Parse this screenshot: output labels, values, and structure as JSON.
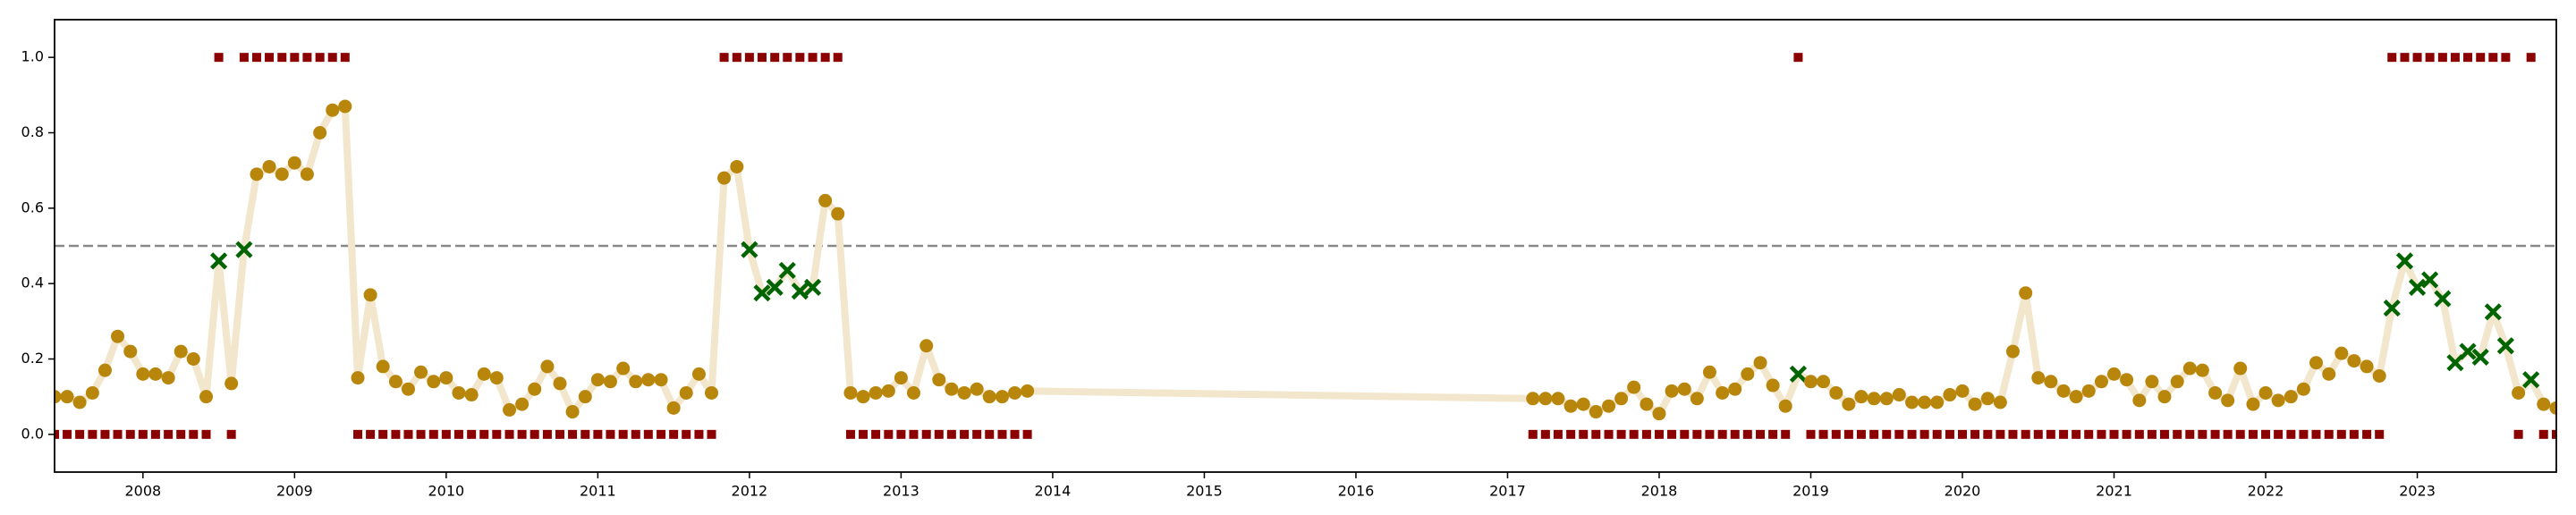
{
  "chart_data": {
    "type": "line",
    "x": [
      2007.417,
      2007.5,
      2007.583,
      2007.667,
      2007.75,
      2007.833,
      2007.917,
      2008,
      2008.083,
      2008.167,
      2008.25,
      2008.333,
      2008.417,
      2008.5,
      2008.583,
      2008.667,
      2008.75,
      2008.833,
      2008.917,
      2009,
      2009.083,
      2009.167,
      2009.25,
      2009.333,
      2009.417,
      2009.5,
      2009.583,
      2009.667,
      2009.75,
      2009.833,
      2009.917,
      2010,
      2010.083,
      2010.167,
      2010.25,
      2010.333,
      2010.417,
      2010.5,
      2010.583,
      2010.667,
      2010.75,
      2010.833,
      2010.917,
      2011,
      2011.083,
      2011.167,
      2011.25,
      2011.333,
      2011.417,
      2011.5,
      2011.583,
      2011.667,
      2011.75,
      2011.833,
      2011.917,
      2012,
      2012.083,
      2012.167,
      2012.25,
      2012.333,
      2012.417,
      2012.5,
      2012.583,
      2012.667,
      2012.75,
      2012.833,
      2012.917,
      2013,
      2013.083,
      2013.167,
      2013.25,
      2013.333,
      2013.417,
      2013.5,
      2013.583,
      2013.667,
      2013.75,
      2013.833,
      2017.167,
      2017.25,
      2017.333,
      2017.417,
      2017.5,
      2017.583,
      2017.667,
      2017.75,
      2017.833,
      2017.917,
      2018,
      2018.083,
      2018.167,
      2018.25,
      2018.333,
      2018.417,
      2018.5,
      2018.583,
      2018.667,
      2018.75,
      2018.833,
      2018.917,
      2019,
      2019.083,
      2019.167,
      2019.25,
      2019.333,
      2019.417,
      2019.5,
      2019.583,
      2019.667,
      2019.75,
      2019.833,
      2019.917,
      2020,
      2020.083,
      2020.167,
      2020.25,
      2020.333,
      2020.417,
      2020.5,
      2020.583,
      2020.667,
      2020.75,
      2020.833,
      2020.917,
      2021,
      2021.083,
      2021.167,
      2021.25,
      2021.333,
      2021.417,
      2021.5,
      2021.583,
      2021.667,
      2021.75,
      2021.833,
      2021.917,
      2022,
      2022.083,
      2022.167,
      2022.25,
      2022.333,
      2022.417,
      2022.5,
      2022.583,
      2022.667,
      2022.75,
      2022.833,
      2022.917,
      2023,
      2023.083,
      2023.167,
      2023.25,
      2023.333,
      2023.417,
      2023.5,
      2023.583,
      2023.667,
      2023.75,
      2023.833,
      2023.917
    ],
    "values": [
      0.1,
      0.1,
      0.085,
      0.11,
      0.17,
      0.26,
      0.22,
      0.16,
      0.16,
      0.15,
      0.22,
      0.2,
      0.1,
      0.46,
      0.135,
      0.49,
      0.69,
      0.71,
      0.69,
      0.72,
      0.69,
      0.8,
      0.86,
      0.87,
      0.15,
      0.37,
      0.18,
      0.14,
      0.12,
      0.165,
      0.14,
      0.15,
      0.11,
      0.105,
      0.16,
      0.15,
      0.065,
      0.08,
      0.12,
      0.18,
      0.135,
      0.06,
      0.1,
      0.145,
      0.14,
      0.175,
      0.14,
      0.145,
      0.145,
      0.07,
      0.11,
      0.16,
      0.11,
      0.68,
      0.71,
      0.49,
      0.375,
      0.39,
      0.435,
      0.38,
      0.39,
      0.62,
      0.585,
      0.11,
      0.1,
      0.11,
      0.115,
      0.15,
      0.11,
      0.235,
      0.145,
      0.12,
      0.11,
      0.12,
      0.1,
      0.1,
      0.11,
      0.115,
      0.095,
      0.095,
      0.095,
      0.075,
      0.08,
      0.06,
      0.075,
      0.095,
      0.125,
      0.08,
      0.055,
      0.115,
      0.12,
      0.095,
      0.165,
      0.11,
      0.12,
      0.16,
      0.19,
      0.13,
      0.075,
      0.16,
      0.14,
      0.14,
      0.11,
      0.08,
      0.1,
      0.095,
      0.095,
      0.105,
      0.085,
      0.085,
      0.085,
      0.105,
      0.115,
      0.08,
      0.095,
      0.085,
      0.22,
      0.375,
      0.15,
      0.14,
      0.115,
      0.1,
      0.115,
      0.14,
      0.16,
      0.145,
      0.09,
      0.14,
      0.1,
      0.14,
      0.175,
      0.17,
      0.11,
      0.09,
      0.175,
      0.08,
      0.11,
      0.09,
      0.1,
      0.12,
      0.19,
      0.16,
      0.215,
      0.195,
      0.18,
      0.155,
      0.335,
      0.46,
      0.39,
      0.41,
      0.36,
      0.19,
      0.22,
      0.205,
      0.325,
      0.235,
      0.11,
      0.145,
      0.08,
      0.07
    ],
    "labels": [
      0,
      0,
      0,
      0,
      0,
      0,
      0,
      0,
      0,
      0,
      0,
      0,
      0,
      1,
      0,
      1,
      1,
      1,
      1,
      1,
      1,
      1,
      1,
      1,
      0,
      0,
      0,
      0,
      0,
      0,
      0,
      0,
      0,
      0,
      0,
      0,
      0,
      0,
      0,
      0,
      0,
      0,
      0,
      0,
      0,
      0,
      0,
      0,
      0,
      0,
      0,
      0,
      0,
      1,
      1,
      1,
      1,
      1,
      1,
      1,
      1,
      1,
      1,
      0,
      0,
      0,
      0,
      0,
      0,
      0,
      0,
      0,
      0,
      0,
      0,
      0,
      0,
      0,
      0,
      0,
      0,
      0,
      0,
      0,
      0,
      0,
      0,
      0,
      0,
      0,
      0,
      0,
      0,
      0,
      0,
      0,
      0,
      0,
      0,
      1,
      0,
      0,
      0,
      0,
      0,
      0,
      0,
      0,
      0,
      0,
      0,
      0,
      0,
      0,
      0,
      0,
      0,
      0,
      0,
      0,
      0,
      0,
      0,
      0,
      0,
      0,
      0,
      0,
      0,
      0,
      0,
      0,
      0,
      0,
      0,
      0,
      0,
      0,
      0,
      0,
      0,
      0,
      0,
      0,
      0,
      0,
      1,
      1,
      1,
      1,
      1,
      1,
      1,
      1,
      1,
      1,
      0,
      1,
      0,
      0
    ],
    "threshold": 0.5,
    "line_color": "#f2e6cc",
    "marker_color": "#b8860b",
    "miss_color": "#006400",
    "label_color": "#8b0000",
    "threshold_color": "#888888",
    "xlim": [
      2007.417,
      2023.917
    ],
    "ylim": [
      -0.1,
      1.1
    ],
    "xticks": [
      2008,
      2009,
      2010,
      2011,
      2012,
      2013,
      2014,
      2015,
      2016,
      2017,
      2018,
      2019,
      2020,
      2021,
      2022,
      2023
    ],
    "yticks": [
      {
        "value": 0,
        "label": "0.0"
      },
      0.2,
      0.4,
      0.6,
      0.8,
      {
        "value": 1,
        "label": "1.0"
      }
    ]
  }
}
